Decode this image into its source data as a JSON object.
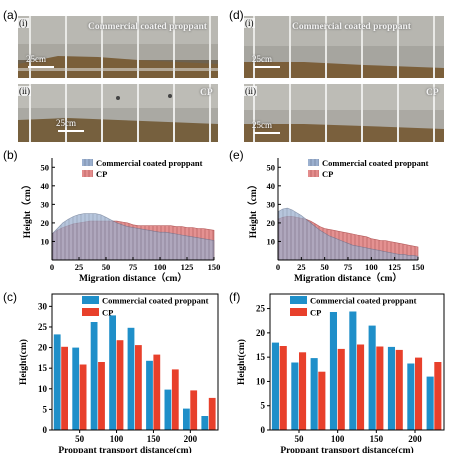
{
  "panels": {
    "a": {
      "label": "(a)",
      "photos": [
        {
          "sub": "(i)",
          "title": "Commercial coated proppant",
          "scale": "25cm"
        },
        {
          "sub": "(ii)",
          "title": "CP",
          "scale": "25cm"
        }
      ]
    },
    "d": {
      "label": "(d)",
      "photos": [
        {
          "sub": "(i)",
          "title": "Commercial coated proppant",
          "scale": "25cm"
        },
        {
          "sub": "(ii)",
          "title": "CP",
          "scale": "25cm"
        }
      ]
    },
    "b_label": "(b)",
    "e_label": "(e)",
    "c_label": "(c)",
    "f_label": "(f)"
  },
  "colors": {
    "commercial_area": "#9bb0cf",
    "cp_area": "#e38c8c",
    "bar_commercial": "#1f8fc9",
    "bar_cp": "#e8402b"
  },
  "chart_data": [
    {
      "id": "b",
      "type": "area",
      "xlabel": "Migration distance（cm）",
      "ylabel": "Height（cm）",
      "xlim": [
        0,
        150
      ],
      "ylim": [
        0,
        55
      ],
      "xticks": [
        0,
        25,
        50,
        75,
        100,
        125,
        150
      ],
      "yticks": [
        10,
        20,
        30,
        40,
        50
      ],
      "legend": [
        "Commercial coated proppant",
        "CP"
      ],
      "series": [
        {
          "name": "Commercial coated proppant",
          "x": [
            0,
            5,
            10,
            15,
            20,
            25,
            30,
            35,
            40,
            45,
            50,
            55,
            60,
            65,
            70,
            75,
            80,
            85,
            90,
            95,
            100,
            105,
            110,
            115,
            120,
            125,
            130,
            135,
            140,
            145,
            150
          ],
          "y": [
            14,
            17,
            20,
            22,
            23.5,
            24.5,
            25,
            25,
            25,
            24.5,
            23,
            21.5,
            20,
            19,
            18,
            17.5,
            17,
            16.5,
            16,
            15.5,
            15,
            15,
            14.5,
            14,
            13.5,
            13,
            12.5,
            12,
            11.5,
            11,
            10.5
          ]
        },
        {
          "name": "CP",
          "x": [
            0,
            5,
            10,
            15,
            20,
            25,
            30,
            35,
            40,
            45,
            50,
            55,
            60,
            65,
            70,
            75,
            80,
            85,
            90,
            95,
            100,
            105,
            110,
            115,
            120,
            125,
            130,
            135,
            140,
            145,
            150
          ],
          "y": [
            14,
            16,
            17.5,
            18.5,
            19.5,
            20,
            20.5,
            21,
            21,
            21,
            21,
            21,
            21,
            20.5,
            20,
            19,
            18.5,
            18.5,
            18.5,
            18.5,
            18.5,
            18.5,
            18.5,
            18,
            18,
            17.5,
            17.5,
            17,
            17,
            16.5,
            16
          ]
        }
      ]
    },
    {
      "id": "e",
      "type": "area",
      "xlabel": "Migration distance（cm）",
      "ylabel": "Height（cm）",
      "xlim": [
        0,
        150
      ],
      "ylim": [
        0,
        55
      ],
      "xticks": [
        0,
        25,
        50,
        75,
        100,
        125,
        150
      ],
      "yticks": [
        10,
        20,
        30,
        40,
        50
      ],
      "legend": [
        "Commercial coated proppant",
        "CP"
      ],
      "series": [
        {
          "name": "Commercial coated proppant",
          "x": [
            0,
            5,
            10,
            15,
            20,
            25,
            30,
            35,
            40,
            45,
            50,
            55,
            60,
            65,
            70,
            75,
            80,
            85,
            90,
            95,
            100,
            105,
            110,
            115,
            120,
            125,
            130,
            135,
            140,
            145,
            150
          ],
          "y": [
            26,
            27.5,
            28,
            27,
            25.5,
            24,
            22,
            20,
            18,
            16,
            14.5,
            13,
            12,
            11,
            10,
            9,
            8,
            7.5,
            7,
            6.5,
            6,
            5.5,
            5,
            4.5,
            4,
            3.5,
            3,
            3,
            2.5,
            2.5,
            2
          ]
        },
        {
          "name": "CP",
          "x": [
            0,
            5,
            10,
            15,
            20,
            25,
            30,
            35,
            40,
            45,
            50,
            55,
            60,
            65,
            70,
            75,
            80,
            85,
            90,
            95,
            100,
            105,
            110,
            115,
            120,
            125,
            130,
            135,
            140,
            145,
            150
          ],
          "y": [
            22,
            23,
            23.5,
            23.5,
            23,
            22.5,
            22,
            21,
            19.5,
            18,
            17,
            16.5,
            16,
            15.5,
            15,
            14.5,
            14,
            13.5,
            13,
            12.5,
            11.5,
            11,
            10.5,
            10.5,
            10,
            9.5,
            9,
            8.5,
            8,
            7.5,
            7
          ]
        }
      ]
    },
    {
      "id": "c",
      "type": "bar",
      "xlabel": "Proppant transport distance(cm)",
      "ylabel": "Height(cm)",
      "ylim": [
        0,
        33
      ],
      "yticks": [
        0,
        5,
        10,
        15,
        20,
        25,
        30
      ],
      "xticks": [
        50,
        100,
        150,
        200
      ],
      "x": [
        25,
        50,
        75,
        100,
        125,
        150,
        175,
        200,
        225
      ],
      "legend": [
        "Commercial coated proppant",
        "CP"
      ],
      "series": [
        {
          "name": "Commercial coated proppant",
          "values": [
            23.2,
            20,
            26.2,
            27.8,
            24.8,
            16.8,
            9.8,
            5.2,
            3.4
          ]
        },
        {
          "name": "CP",
          "values": [
            20.2,
            15.9,
            16.5,
            21.8,
            20.6,
            18.3,
            14.7,
            9.6,
            7.8
          ]
        }
      ]
    },
    {
      "id": "f",
      "type": "bar",
      "xlabel": "Proppant transport distance(cm)",
      "ylabel": "Height(cm)",
      "ylim": [
        0,
        28
      ],
      "yticks": [
        0,
        5,
        10,
        15,
        20,
        25
      ],
      "xticks": [
        50,
        100,
        150,
        200
      ],
      "x": [
        25,
        50,
        75,
        100,
        125,
        150,
        175,
        200,
        225
      ],
      "legend": [
        "Commercial coated proppant",
        "CP"
      ],
      "series": [
        {
          "name": "Commercial coated proppant",
          "values": [
            18,
            13.9,
            14.8,
            24.3,
            24.4,
            21.5,
            17.1,
            13.7,
            11
          ]
        },
        {
          "name": "CP",
          "values": [
            17.3,
            16,
            12,
            16.7,
            17.6,
            17.2,
            16.5,
            14.9,
            14
          ]
        }
      ]
    }
  ]
}
